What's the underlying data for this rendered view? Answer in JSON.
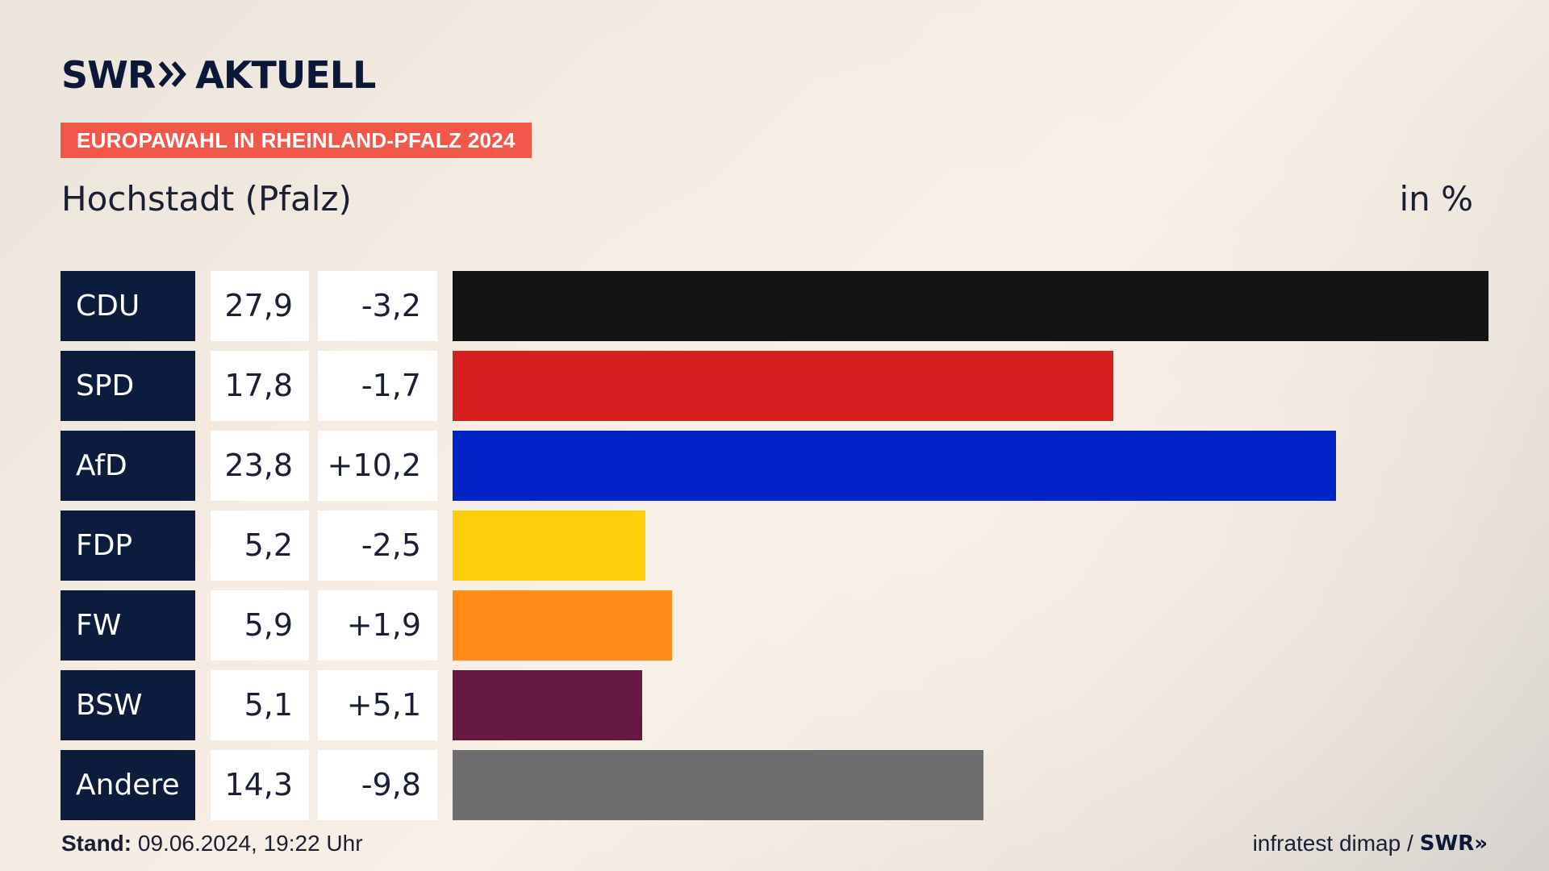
{
  "header": {
    "logo_swr": "SWR",
    "logo_chevrons": "»",
    "logo_aktuell": "AKTUELL",
    "badge": "EUROPAWAHL IN RHEINLAND-PFALZ 2024",
    "subtitle": "Hochstadt (Pfalz)",
    "unit": "in %"
  },
  "chart_data": {
    "type": "bar",
    "orientation": "horizontal",
    "title": "Hochstadt (Pfalz)",
    "unit": "in %",
    "categories": [
      "CDU",
      "SPD",
      "AfD",
      "FDP",
      "FW",
      "BSW",
      "Andere"
    ],
    "values": [
      27.9,
      17.8,
      23.8,
      5.2,
      5.9,
      5.1,
      14.3
    ],
    "value_labels": [
      "27,9",
      "17,8",
      "23,8",
      "5,2",
      "5,9",
      "5,1",
      "14,3"
    ],
    "diff_labels": [
      "-3,2",
      "-1,7",
      "+10,2",
      "-2,5",
      "+1,9",
      "+5,1",
      "-9,8"
    ],
    "diffs": [
      -3.2,
      -1.7,
      10.2,
      -2.5,
      1.9,
      5.1,
      -9.8
    ],
    "colors": [
      "#141414",
      "#d71f1f",
      "#0023c6",
      "#fece0b",
      "#ff8d17",
      "#661840",
      "#6e6e70"
    ],
    "xlim": [
      0,
      27.9
    ],
    "grid": false,
    "legend": "none"
  },
  "footer": {
    "stand_label": "Stand:",
    "stand_value": " 09.06.2024, 19:22 Uhr",
    "source": "infratest dimap /",
    "source_brand": "SWR»"
  }
}
